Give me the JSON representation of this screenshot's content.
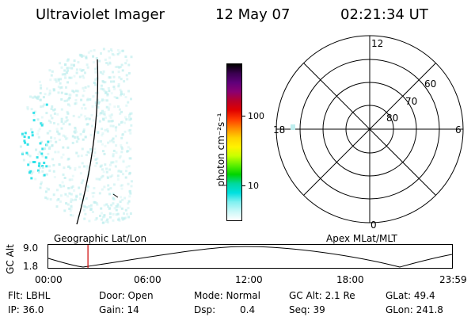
{
  "header": {
    "instrument": "Ultraviolet Imager",
    "date": "12 May 07",
    "time": "02:21:34 UT"
  },
  "colorbar": {
    "unit_label": "photon cm⁻²s⁻¹",
    "ticks": [
      "100",
      "10"
    ],
    "colors": [
      "#000000",
      "#3a0050",
      "#60007a",
      "#8a0072",
      "#b8002a",
      "#e00000",
      "#ff3c00",
      "#ff8c00",
      "#ffd200",
      "#fff200",
      "#c8ff00",
      "#5ef000",
      "#00d400",
      "#00d8a0",
      "#00e0e0",
      "#7ff0f0",
      "#c8f8f8",
      "#ffffff"
    ]
  },
  "polar_plot": {
    "mlt_labels": [
      "12",
      "18",
      "6",
      "0"
    ],
    "mlat_labels": [
      "60",
      "70",
      "80"
    ]
  },
  "orbit": {
    "coord_left": "Geographic Lat/Lon",
    "coord_right": "Apex  MLat/MLT",
    "axis_title": "GC Alt",
    "y_max": "9.0",
    "y_min": "1.8",
    "time_ticks": [
      "00:00",
      "06:00",
      "12:00",
      "18:00",
      "23:59"
    ],
    "marker_time_hours": 2.36
  },
  "status": {
    "filter": "Flt: LBHL",
    "ip": "IP: 36.0",
    "door": "Door: Open",
    "gain": "Gain: 14",
    "mode": "Mode: Normal",
    "dsp_label": "Dsp:",
    "dsp_value": "0.4",
    "gc_alt": "GC Alt: 2.1 Re",
    "seq": "Seq: 39",
    "glat": "GLat:  49.4",
    "glon": "GLon: 241.8"
  },
  "colors": {
    "aurora": "#22e0e8",
    "aurora_light": "#bfeeee",
    "marker": "#cc0000"
  }
}
